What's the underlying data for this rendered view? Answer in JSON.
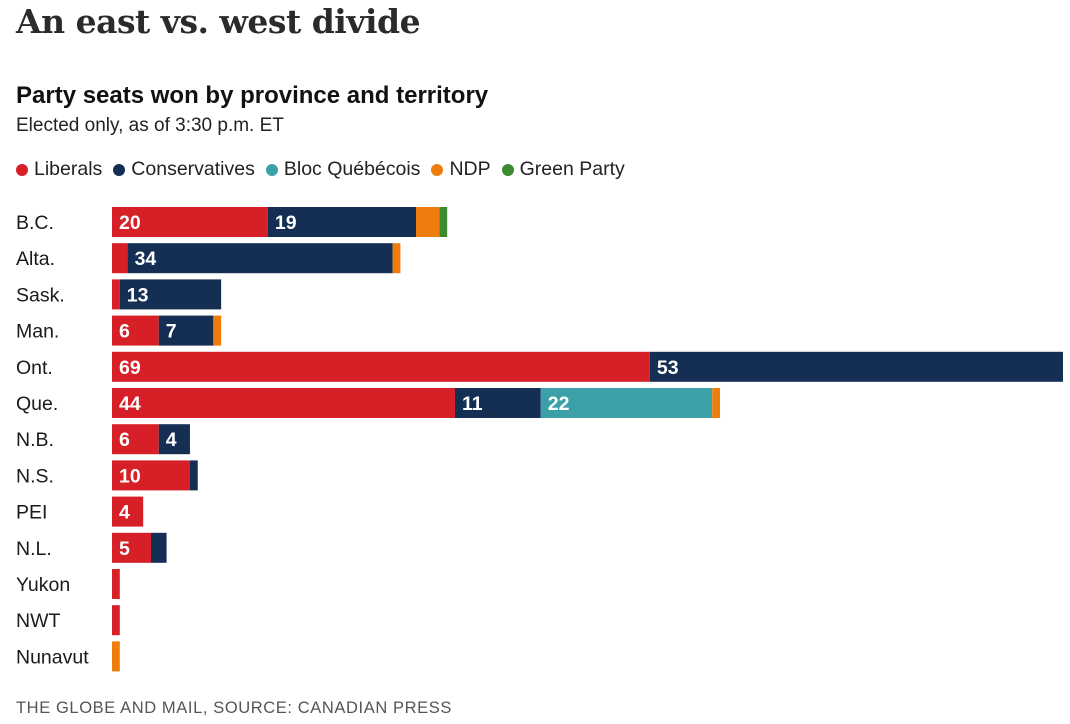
{
  "headline": "An east vs. west divide",
  "footer": "THE GLOBE AND MAIL, SOURCE: CANADIAN PRESS",
  "legend": [
    {
      "name": "Liberals",
      "color": "#d71f27"
    },
    {
      "name": "Conservatives",
      "color": "#142e54"
    },
    {
      "name": "Bloc Québécois",
      "color": "#3ca0a8"
    },
    {
      "name": "NDP",
      "color": "#ef7d0d"
    },
    {
      "name": "Green Party",
      "color": "#3a8a2f"
    }
  ],
  "chart_data": {
    "type": "bar",
    "orientation": "horizontal",
    "stacked": true,
    "title": "Party seats won by province and territory",
    "subtitle": "Elected only, as of 3:30 p.m. ET",
    "categories": [
      "B.C.",
      "Alta.",
      "Sask.",
      "Man.",
      "Ont.",
      "Que.",
      "N.B.",
      "N.S.",
      "PEI",
      "N.L.",
      "Yukon",
      "NWT",
      "Nunavut"
    ],
    "series": [
      {
        "name": "Liberals",
        "color": "#d71f27",
        "values": [
          20,
          2,
          1,
          6,
          69,
          44,
          6,
          10,
          4,
          5,
          1,
          1,
          0
        ]
      },
      {
        "name": "Conservatives",
        "color": "#142e54",
        "values": [
          19,
          34,
          13,
          7,
          53,
          11,
          4,
          1,
          0,
          2,
          0,
          0,
          0
        ]
      },
      {
        "name": "Bloc Québécois",
        "color": "#3ca0a8",
        "values": [
          0,
          0,
          0,
          0,
          0,
          22,
          0,
          0,
          0,
          0,
          0,
          0,
          0
        ]
      },
      {
        "name": "NDP",
        "color": "#ef7d0d",
        "values": [
          3,
          1,
          0,
          1,
          0,
          1,
          0,
          0,
          0,
          0,
          0,
          0,
          1
        ]
      },
      {
        "name": "Green Party",
        "color": "#3a8a2f",
        "values": [
          1,
          0,
          0,
          0,
          0,
          0,
          0,
          0,
          0,
          0,
          0,
          0,
          0
        ]
      }
    ],
    "data_labels": [
      [
        "20",
        "19",
        "",
        "",
        ""
      ],
      [
        "",
        "34",
        "",
        "",
        ""
      ],
      [
        "",
        "13",
        "",
        "",
        ""
      ],
      [
        "6",
        "7",
        "",
        "",
        ""
      ],
      [
        "69",
        "53",
        "",
        "",
        ""
      ],
      [
        "44",
        "11",
        "22",
        "",
        ""
      ],
      [
        "6",
        "4",
        "",
        "",
        ""
      ],
      [
        "10",
        "",
        "",
        "",
        ""
      ],
      [
        "4",
        "",
        "",
        "",
        ""
      ],
      [
        "5",
        "",
        "",
        "",
        ""
      ],
      [
        "",
        "",
        "",
        "",
        ""
      ],
      [
        "",
        "",
        "",
        "",
        ""
      ],
      [
        "",
        "",
        "",
        "",
        ""
      ]
    ],
    "xlim": [
      0,
      122
    ],
    "grid": false
  }
}
